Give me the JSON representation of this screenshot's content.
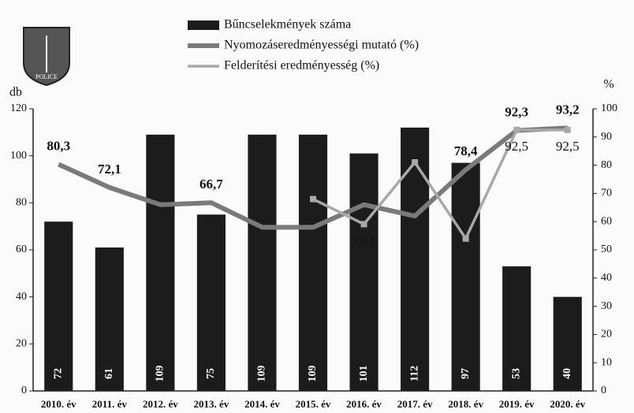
{
  "chart_data": {
    "type": "bar-line",
    "logo_text": "POLICE",
    "y_label": "db",
    "y2_label": "%",
    "categories": [
      "2010. év",
      "2011. év",
      "2012. év",
      "2013. év",
      "2014. év",
      "2015. év",
      "2016. év",
      "2017. év",
      "2018. év",
      "2019. év",
      "2020. év"
    ],
    "ylim": [
      0,
      120
    ],
    "yticks": [
      0,
      20,
      40,
      60,
      80,
      100,
      120
    ],
    "y2lim": [
      0,
      100
    ],
    "y2ticks": [
      0,
      10,
      20,
      30,
      40,
      50,
      60,
      70,
      80,
      90,
      100
    ],
    "series": [
      {
        "name": "Bűncselekmények száma",
        "kind": "bar",
        "color": "#1c1c1c",
        "values": [
          72,
          61,
          109,
          75,
          109,
          109,
          101,
          112,
          97,
          53,
          40
        ]
      },
      {
        "name": "Nyomozáseredményességi mutató (%)",
        "kind": "line",
        "axis": "y2",
        "color": "#7a7a7a",
        "values": [
          80.3,
          72.1,
          66,
          66.7,
          58,
          58,
          66,
          62,
          78.4,
          92.3,
          93.2
        ],
        "value_labels": [
          "80,3",
          "72,1",
          null,
          "66,7",
          null,
          null,
          null,
          null,
          "78,4",
          "92,3",
          "93,2"
        ]
      },
      {
        "name": "Felderítési eredményesség (%)",
        "kind": "line",
        "axis": "y2",
        "color": "#a8a8a8",
        "values": [
          null,
          null,
          null,
          null,
          null,
          68,
          59.1,
          81,
          54,
          92.5,
          92.5
        ],
        "value_labels": [
          null,
          null,
          null,
          null,
          null,
          null,
          "59,1",
          null,
          null,
          "92,5",
          "92,5"
        ]
      }
    ]
  }
}
